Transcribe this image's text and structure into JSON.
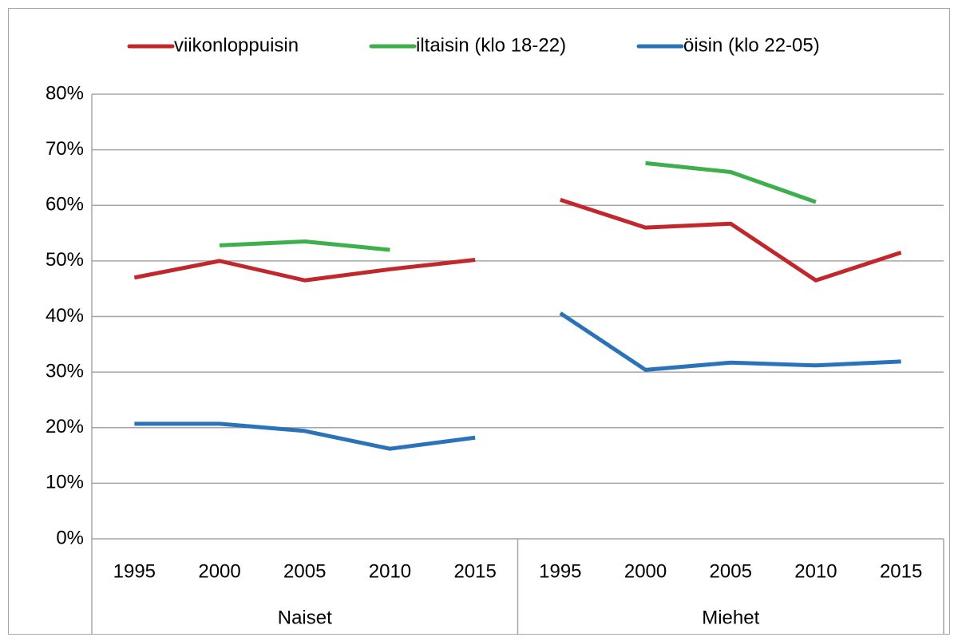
{
  "chart_data": {
    "type": "line",
    "categories": [
      "1995",
      "2000",
      "2005",
      "2010",
      "2015",
      "1995",
      "2000",
      "2005",
      "2010",
      "2015"
    ],
    "groups": [
      "Naiset",
      "Miehet"
    ],
    "series": [
      {
        "name": "viikonloppuisin",
        "color": "#c0282d",
        "values": [
          47,
          50,
          46.5,
          48.5,
          50.2,
          61,
          56,
          56.7,
          46.5,
          51.5
        ]
      },
      {
        "name": "iltaisin (klo 18-22)",
        "color": "#3daf4d",
        "values": [
          null,
          52.8,
          53.5,
          52,
          null,
          null,
          67.6,
          66,
          60.6,
          null
        ]
      },
      {
        "name": "öisin (klo 22-05)",
        "color": "#2a73b8",
        "values": [
          20.7,
          20.7,
          19.4,
          16.2,
          18.2,
          40.6,
          30.4,
          31.7,
          31.2,
          31.9
        ]
      }
    ],
    "ylim": [
      0,
      80
    ],
    "yticks": [
      {
        "value": 0,
        "label": "0%"
      },
      {
        "value": 10,
        "label": "10%"
      },
      {
        "value": 20,
        "label": "20%"
      },
      {
        "value": 30,
        "label": "30%"
      },
      {
        "value": 40,
        "label": "40%"
      },
      {
        "value": 50,
        "label": "50%"
      },
      {
        "value": 60,
        "label": "60%"
      },
      {
        "value": 70,
        "label": "70%"
      },
      {
        "value": 80,
        "label": "80%"
      }
    ],
    "grid": true,
    "legend": "top"
  }
}
